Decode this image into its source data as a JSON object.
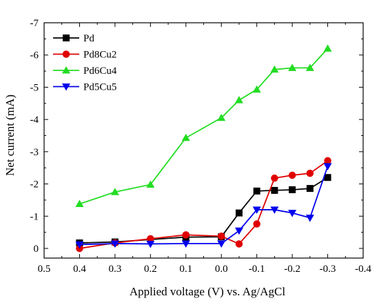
{
  "chart_data": {
    "type": "line",
    "title": "",
    "xlabel": "Applied voltage (V) vs. Ag/AgCl",
    "ylabel": "Net current (mA)",
    "x_reversed": true,
    "y_reversed": true,
    "xlim": [
      0.5,
      -0.4
    ],
    "ylim": [
      0.3,
      -7
    ],
    "x_ticks": [
      0.5,
      0.4,
      0.3,
      0.2,
      0.1,
      0.0,
      -0.1,
      -0.2,
      -0.3,
      -0.4
    ],
    "x_tick_labels": [
      "0.5",
      "0.4",
      "0.3",
      "0.2",
      "0.1",
      "0.0",
      "-0.1",
      "-0.2",
      "-0.3",
      "-0.4"
    ],
    "y_ticks": [
      0,
      -1,
      -2,
      -3,
      -4,
      -5,
      -6,
      -7
    ],
    "y_tick_labels": [
      "0",
      "-1",
      "-2",
      "-3",
      "-4",
      "-5",
      "-6",
      "-7"
    ],
    "grid": false,
    "legend_position": "top-left",
    "series": [
      {
        "name": "Pd",
        "color": "#000000",
        "marker": "square",
        "x": [
          0.4,
          0.3,
          0.1,
          0.0,
          -0.05,
          -0.1,
          -0.15,
          -0.2,
          -0.25,
          -0.3
        ],
        "y": [
          -0.17,
          -0.2,
          -0.35,
          -0.36,
          -1.1,
          -1.78,
          -1.8,
          -1.82,
          -1.86,
          -2.2
        ]
      },
      {
        "name": "Pd8Cu2",
        "color": "#e00000",
        "marker": "circle",
        "x": [
          0.4,
          0.3,
          0.2,
          0.1,
          0.0,
          -0.05,
          -0.1,
          -0.15,
          -0.2,
          -0.25,
          -0.3
        ],
        "y": [
          0.0,
          -0.17,
          -0.3,
          -0.42,
          -0.38,
          -0.14,
          -0.76,
          -2.18,
          -2.27,
          -2.33,
          -2.72
        ]
      },
      {
        "name": "Pd6Cu4",
        "color": "#22dd22",
        "marker": "triangle-up",
        "x": [
          0.4,
          0.3,
          0.2,
          0.1,
          0.0,
          -0.05,
          -0.1,
          -0.15,
          -0.2,
          -0.25,
          -0.3
        ],
        "y": [
          -1.38,
          -1.75,
          -1.98,
          -3.43,
          -4.05,
          -4.6,
          -4.93,
          -5.55,
          -5.6,
          -5.6,
          -6.2
        ]
      },
      {
        "name": "Pd5Cu5",
        "color": "#0000ee",
        "marker": "triangle-down",
        "x": [
          0.4,
          0.3,
          0.2,
          0.1,
          0.0,
          -0.05,
          -0.1,
          -0.15,
          -0.2,
          -0.25,
          -0.3
        ],
        "y": [
          -0.12,
          -0.15,
          -0.14,
          -0.15,
          -0.15,
          -0.55,
          -1.2,
          -1.2,
          -1.1,
          -0.95,
          -2.55
        ]
      }
    ]
  }
}
